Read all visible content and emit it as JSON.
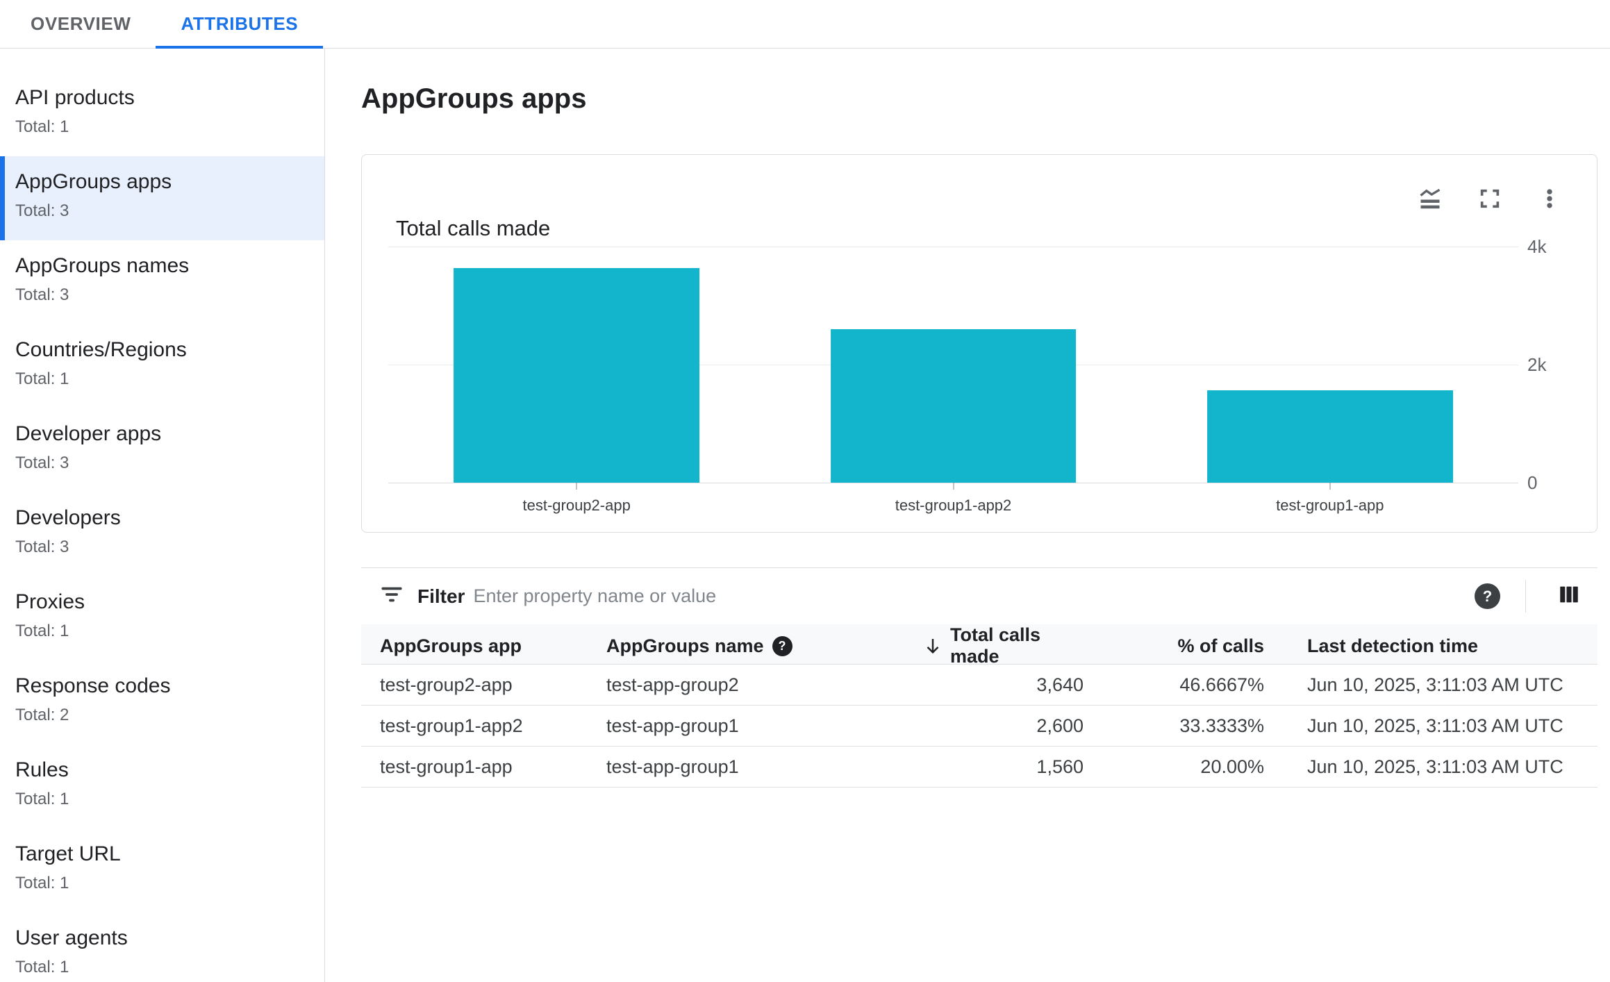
{
  "tabs": [
    {
      "label": "OVERVIEW",
      "active": false
    },
    {
      "label": "ATTRIBUTES",
      "active": true
    }
  ],
  "sidebar": {
    "items": [
      {
        "label": "API products",
        "total": "Total: 1",
        "selected": false
      },
      {
        "label": "AppGroups apps",
        "total": "Total: 3",
        "selected": true
      },
      {
        "label": "AppGroups names",
        "total": "Total: 3",
        "selected": false
      },
      {
        "label": "Countries/Regions",
        "total": "Total: 1",
        "selected": false
      },
      {
        "label": "Developer apps",
        "total": "Total: 3",
        "selected": false
      },
      {
        "label": "Developers",
        "total": "Total: 3",
        "selected": false
      },
      {
        "label": "Proxies",
        "total": "Total: 1",
        "selected": false
      },
      {
        "label": "Response codes",
        "total": "Total: 2",
        "selected": false
      },
      {
        "label": "Rules",
        "total": "Total: 1",
        "selected": false
      },
      {
        "label": "Target URL",
        "total": "Total: 1",
        "selected": false
      },
      {
        "label": "User agents",
        "total": "Total: 1",
        "selected": false
      }
    ]
  },
  "page": {
    "title": "AppGroups apps"
  },
  "chart_data": {
    "type": "bar",
    "title": "Total calls made",
    "categories": [
      "test-group2-app",
      "test-group1-app2",
      "test-group1-app"
    ],
    "values": [
      3640,
      2600,
      1560
    ],
    "xlabel": "",
    "ylabel": "",
    "ylim": [
      0,
      4000
    ],
    "yticks": [
      {
        "label": "4k",
        "value": 4000
      },
      {
        "label": "2k",
        "value": 2000
      },
      {
        "label": "0",
        "value": 0
      }
    ],
    "grid": "horizontal",
    "legend": "none",
    "bar_color": "#12B5CB"
  },
  "filter": {
    "label": "Filter",
    "placeholder": "Enter property name or value",
    "help_glyph": "?"
  },
  "table": {
    "columns": [
      {
        "label": "AppGroups app"
      },
      {
        "label": "AppGroups name",
        "help": true,
        "help_glyph": "?"
      },
      {
        "label": "Total calls made",
        "sorted": "desc"
      },
      {
        "label": "% of calls"
      },
      {
        "label": "Last detection time"
      }
    ],
    "rows": [
      {
        "app": "test-group2-app",
        "name": "test-app-group2",
        "calls": "3,640",
        "pct": "46.6667%",
        "time": "Jun 10, 2025, 3:11:03 AM UTC"
      },
      {
        "app": "test-group1-app2",
        "name": "test-app-group1",
        "calls": "2,600",
        "pct": "33.3333%",
        "time": "Jun 10, 2025, 3:11:03 AM UTC"
      },
      {
        "app": "test-group1-app",
        "name": "test-app-group1",
        "calls": "1,560",
        "pct": "20.00%",
        "time": "Jun 10, 2025, 3:11:03 AM UTC"
      }
    ]
  },
  "colors": {
    "accent": "#1A73E8",
    "selected_bg": "#E8F0FE",
    "bar": "#12B5CB",
    "border": "#DADCE0",
    "text_primary": "#202124",
    "text_secondary": "#5F6368",
    "table_header_bg": "#F8F9FA"
  }
}
